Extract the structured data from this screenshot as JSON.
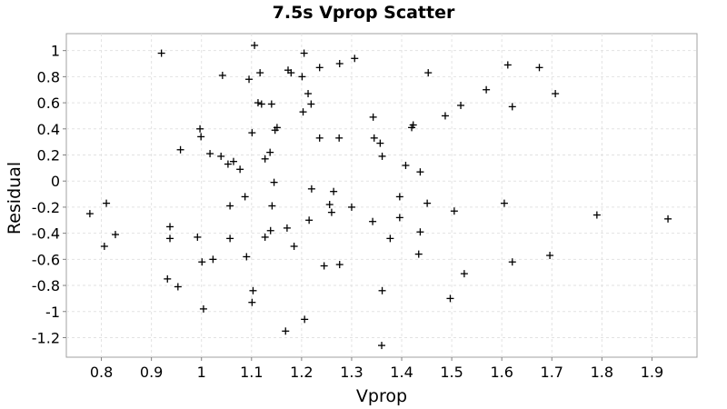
{
  "chart_data": {
    "type": "scatter",
    "title": "7.5s Vprop Scatter",
    "xlabel": "Vprop",
    "ylabel": "Residual",
    "xlim": [
      0.73,
      1.99
    ],
    "ylim": [
      -1.35,
      1.13
    ],
    "x_ticks": [
      0.8,
      0.9,
      1.0,
      1.1,
      1.2,
      1.3,
      1.4,
      1.5,
      1.6,
      1.7,
      1.8,
      1.9
    ],
    "x_tick_labels": [
      "0.8",
      "0.9",
      "1",
      "1.1",
      "1.2",
      "1.3",
      "1.4",
      "1.5",
      "1.6",
      "1.7",
      "1.8",
      "1.9"
    ],
    "y_ticks": [
      1.0,
      0.8,
      0.6,
      0.4,
      0.2,
      0.0,
      -0.2,
      -0.4,
      -0.6,
      -0.8,
      -1.0,
      -1.2
    ],
    "y_tick_labels": [
      "1",
      "0.8",
      "0.6",
      "0.4",
      "0.2",
      "0",
      "-0.2",
      "-0.4",
      "-0.6",
      "-0.8",
      "-1",
      "-1.2"
    ],
    "grid": true,
    "marker": "plus",
    "color": "#000000",
    "points": [
      {
        "x": 0.777,
        "y": -0.25
      },
      {
        "x": 0.81,
        "y": -0.17
      },
      {
        "x": 0.806,
        "y": -0.5
      },
      {
        "x": 0.828,
        "y": -0.41
      },
      {
        "x": 0.92,
        "y": 0.98
      },
      {
        "x": 0.932,
        "y": -0.75
      },
      {
        "x": 0.937,
        "y": -0.35
      },
      {
        "x": 0.937,
        "y": -0.44
      },
      {
        "x": 0.953,
        "y": -0.81
      },
      {
        "x": 0.958,
        "y": 0.24
      },
      {
        "x": 0.992,
        "y": -0.43
      },
      {
        "x": 0.997,
        "y": 0.4
      },
      {
        "x": 0.999,
        "y": 0.34
      },
      {
        "x": 1.001,
        "y": -0.62
      },
      {
        "x": 1.004,
        "y": -0.98
      },
      {
        "x": 1.017,
        "y": 0.21
      },
      {
        "x": 1.023,
        "y": -0.6
      },
      {
        "x": 1.039,
        "y": 0.19
      },
      {
        "x": 1.042,
        "y": 0.81
      },
      {
        "x": 1.053,
        "y": 0.13
      },
      {
        "x": 1.057,
        "y": -0.19
      },
      {
        "x": 1.057,
        "y": -0.44
      },
      {
        "x": 1.064,
        "y": 0.15
      },
      {
        "x": 1.077,
        "y": 0.09
      },
      {
        "x": 1.087,
        "y": -0.12
      },
      {
        "x": 1.09,
        "y": -0.58
      },
      {
        "x": 1.095,
        "y": 0.78
      },
      {
        "x": 1.101,
        "y": 0.37
      },
      {
        "x": 1.101,
        "y": -0.93
      },
      {
        "x": 1.103,
        "y": -0.84
      },
      {
        "x": 1.106,
        "y": 1.04
      },
      {
        "x": 1.113,
        "y": 0.6
      },
      {
        "x": 1.117,
        "y": 0.83
      },
      {
        "x": 1.12,
        "y": 0.59
      },
      {
        "x": 1.127,
        "y": 0.17
      },
      {
        "x": 1.127,
        "y": -0.43
      },
      {
        "x": 1.137,
        "y": 0.22
      },
      {
        "x": 1.138,
        "y": -0.38
      },
      {
        "x": 1.14,
        "y": 0.59
      },
      {
        "x": 1.141,
        "y": -0.19
      },
      {
        "x": 1.145,
        "y": -0.01
      },
      {
        "x": 1.147,
        "y": 0.39
      },
      {
        "x": 1.151,
        "y": 0.41
      },
      {
        "x": 1.168,
        "y": -1.15
      },
      {
        "x": 1.171,
        "y": -0.36
      },
      {
        "x": 1.173,
        "y": 0.85
      },
      {
        "x": 1.179,
        "y": 0.83
      },
      {
        "x": 1.185,
        "y": -0.5
      },
      {
        "x": 1.201,
        "y": 0.8
      },
      {
        "x": 1.203,
        "y": 0.53
      },
      {
        "x": 1.205,
        "y": 0.98
      },
      {
        "x": 1.206,
        "y": -1.06
      },
      {
        "x": 1.213,
        "y": 0.67
      },
      {
        "x": 1.215,
        "y": -0.3
      },
      {
        "x": 1.219,
        "y": 0.59
      },
      {
        "x": 1.22,
        "y": -0.06
      },
      {
        "x": 1.236,
        "y": 0.87
      },
      {
        "x": 1.236,
        "y": 0.33
      },
      {
        "x": 1.245,
        "y": -0.65
      },
      {
        "x": 1.256,
        "y": -0.18
      },
      {
        "x": 1.26,
        "y": -0.24
      },
      {
        "x": 1.264,
        "y": -0.08
      },
      {
        "x": 1.275,
        "y": 0.33
      },
      {
        "x": 1.276,
        "y": 0.9
      },
      {
        "x": 1.276,
        "y": -0.64
      },
      {
        "x": 1.3,
        "y": -0.2
      },
      {
        "x": 1.306,
        "y": 0.94
      },
      {
        "x": 1.342,
        "y": -0.31
      },
      {
        "x": 1.343,
        "y": 0.49
      },
      {
        "x": 1.345,
        "y": 0.33
      },
      {
        "x": 1.357,
        "y": 0.29
      },
      {
        "x": 1.36,
        "y": -1.26
      },
      {
        "x": 1.361,
        "y": -0.84
      },
      {
        "x": 1.361,
        "y": 0.19
      },
      {
        "x": 1.377,
        "y": -0.44
      },
      {
        "x": 1.396,
        "y": -0.12
      },
      {
        "x": 1.396,
        "y": -0.28
      },
      {
        "x": 1.408,
        "y": 0.12
      },
      {
        "x": 1.42,
        "y": 0.41
      },
      {
        "x": 1.423,
        "y": 0.43
      },
      {
        "x": 1.434,
        "y": -0.56
      },
      {
        "x": 1.437,
        "y": 0.07
      },
      {
        "x": 1.437,
        "y": -0.39
      },
      {
        "x": 1.451,
        "y": -0.17
      },
      {
        "x": 1.453,
        "y": 0.83
      },
      {
        "x": 1.487,
        "y": 0.5
      },
      {
        "x": 1.497,
        "y": -0.9
      },
      {
        "x": 1.505,
        "y": -0.23
      },
      {
        "x": 1.518,
        "y": 0.58
      },
      {
        "x": 1.525,
        "y": -0.71
      },
      {
        "x": 1.569,
        "y": 0.7
      },
      {
        "x": 1.605,
        "y": -0.17
      },
      {
        "x": 1.612,
        "y": 0.89
      },
      {
        "x": 1.621,
        "y": 0.57
      },
      {
        "x": 1.621,
        "y": -0.62
      },
      {
        "x": 1.675,
        "y": 0.87
      },
      {
        "x": 1.696,
        "y": -0.57
      },
      {
        "x": 1.707,
        "y": 0.67
      },
      {
        "x": 1.79,
        "y": -0.26
      },
      {
        "x": 1.932,
        "y": -0.29
      }
    ]
  }
}
